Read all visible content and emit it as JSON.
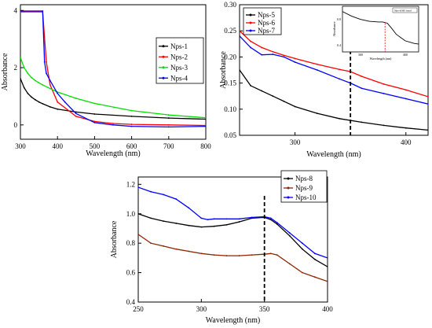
{
  "chart_data": [
    {
      "type": "line",
      "xlabel": "Wavelength (nm)",
      "ylabel": "Absorbance",
      "xlim": [
        300,
        800
      ],
      "ylim": [
        -0.5,
        4.2
      ],
      "xticks": [
        300,
        400,
        500,
        600,
        700,
        800
      ],
      "yticks": [
        0,
        2,
        4
      ],
      "legend_position": "top-right",
      "series": [
        {
          "name": "Nps-1",
          "color": "#000000",
          "x": [
            300,
            310,
            320,
            330,
            340,
            350,
            360,
            380,
            400,
            450,
            500,
            600,
            700,
            800
          ],
          "y": [
            1.62,
            1.3,
            1.1,
            0.97,
            0.88,
            0.8,
            0.74,
            0.63,
            0.55,
            0.45,
            0.38,
            0.3,
            0.24,
            0.2
          ]
        },
        {
          "name": "Nps-2",
          "color": "#ff0000",
          "x": [
            300,
            360,
            370,
            380,
            400,
            450,
            500,
            550,
            600,
            700,
            800
          ],
          "y": [
            3.95,
            3.95,
            2.2,
            1.4,
            0.8,
            0.3,
            0.12,
            0.05,
            0.02,
            0.0,
            -0.02
          ]
        },
        {
          "name": "Nps-3",
          "color": "#00dd00",
          "x": [
            300,
            310,
            320,
            330,
            340,
            350,
            360,
            380,
            400,
            450,
            500,
            600,
            700,
            800
          ],
          "y": [
            2.35,
            2.0,
            1.8,
            1.65,
            1.55,
            1.47,
            1.4,
            1.27,
            1.15,
            0.93,
            0.75,
            0.5,
            0.35,
            0.25
          ]
        },
        {
          "name": "Nps-4",
          "color": "#0000ff",
          "x": [
            300,
            360,
            365,
            370,
            380,
            400,
            420,
            450,
            500,
            550,
            600,
            700,
            800
          ],
          "y": [
            3.98,
            3.98,
            2.2,
            1.8,
            1.55,
            1.1,
            0.8,
            0.4,
            0.08,
            0.0,
            -0.05,
            -0.07,
            -0.05
          ]
        }
      ]
    },
    {
      "type": "line",
      "xlabel": "Wavelength (nm)",
      "ylabel": "Absorbance",
      "xlim": [
        250,
        420
      ],
      "ylim": [
        0.05,
        0.3
      ],
      "xticks": [
        300,
        400
      ],
      "yticks": [
        0.05,
        0.1,
        0.15,
        0.2,
        0.25,
        0.3
      ],
      "ytick_labels": [
        "0.05",
        "0.10",
        "0.15",
        "0.20",
        "0.25",
        "0.30"
      ],
      "marker_line_x": 350,
      "legend_position": "top-left",
      "series": [
        {
          "name": "Nps-5",
          "color": "#000000",
          "x": [
            250,
            260,
            270,
            280,
            290,
            300,
            320,
            340,
            360,
            380,
            400,
            420
          ],
          "y": [
            0.175,
            0.145,
            0.135,
            0.125,
            0.115,
            0.105,
            0.092,
            0.082,
            0.075,
            0.069,
            0.064,
            0.06
          ]
        },
        {
          "name": "Nps-6",
          "color": "#ff0000",
          "x": [
            250,
            260,
            270,
            280,
            290,
            300,
            320,
            340,
            350,
            360,
            380,
            400,
            420
          ],
          "y": [
            0.25,
            0.23,
            0.218,
            0.21,
            0.203,
            0.197,
            0.186,
            0.176,
            0.172,
            0.163,
            0.148,
            0.137,
            0.124
          ]
        },
        {
          "name": "Nps-7",
          "color": "#0000ff",
          "x": [
            250,
            260,
            270,
            280,
            290,
            300,
            320,
            340,
            350,
            360,
            380,
            400,
            420
          ],
          "y": [
            0.24,
            0.218,
            0.204,
            0.205,
            0.2,
            0.19,
            0.175,
            0.158,
            0.15,
            0.14,
            0.13,
            0.12,
            0.11
          ]
        }
      ],
      "inset": {
        "xlabel": "Wavelength (nm)",
        "ylabel": "Absorbance",
        "xticks": [
          300,
          400
        ],
        "yticks": [
          0.4,
          0.8
        ],
        "legend": "Nps-6/HS band",
        "xlim": [
          260,
          430
        ],
        "ylim": [
          0.3,
          1.0
        ],
        "series": {
          "color": "#000000",
          "x": [
            260,
            280,
            300,
            320,
            340,
            350,
            360,
            370,
            380,
            400,
            420,
            430
          ],
          "y": [
            0.92,
            0.85,
            0.8,
            0.77,
            0.76,
            0.76,
            0.74,
            0.66,
            0.57,
            0.47,
            0.43,
            0.42
          ]
        },
        "marker_x": 355
      }
    },
    {
      "type": "line",
      "xlabel": "Wavelength (nm)",
      "ylabel": "Absorbance",
      "xlim": [
        250,
        400
      ],
      "ylim": [
        0.4,
        1.25
      ],
      "xticks": [
        250,
        300,
        350,
        400
      ],
      "yticks": [
        0.4,
        0.6,
        0.8,
        1.0,
        1.2
      ],
      "ytick_labels": [
        "0.4",
        "0.6",
        "0.8",
        "1.0",
        "1.2"
      ],
      "marker_line_x": 350,
      "legend_position": "top-right",
      "series": [
        {
          "name": "Nps-8",
          "color": "#000000",
          "x": [
            250,
            260,
            270,
            280,
            290,
            300,
            310,
            320,
            330,
            340,
            350,
            355,
            360,
            370,
            380,
            390,
            400
          ],
          "y": [
            1.0,
            0.97,
            0.95,
            0.935,
            0.92,
            0.91,
            0.915,
            0.925,
            0.945,
            0.97,
            0.975,
            0.96,
            0.93,
            0.85,
            0.76,
            0.69,
            0.64
          ]
        },
        {
          "name": "Nps-9",
          "color": "#8b2500",
          "x": [
            250,
            260,
            270,
            280,
            290,
            300,
            310,
            320,
            330,
            340,
            350,
            355,
            360,
            370,
            380,
            390,
            400
          ],
          "y": [
            0.86,
            0.8,
            0.78,
            0.76,
            0.745,
            0.73,
            0.72,
            0.715,
            0.715,
            0.72,
            0.725,
            0.73,
            0.72,
            0.66,
            0.6,
            0.57,
            0.54
          ]
        },
        {
          "name": "Nps-10",
          "color": "#0000ff",
          "x": [
            250,
            260,
            270,
            280,
            290,
            300,
            305,
            310,
            320,
            330,
            340,
            350,
            355,
            360,
            370,
            380,
            390,
            400
          ],
          "y": [
            1.18,
            1.15,
            1.13,
            1.1,
            1.04,
            0.97,
            0.96,
            0.965,
            0.965,
            0.965,
            0.975,
            0.98,
            0.97,
            0.94,
            0.87,
            0.8,
            0.73,
            0.7
          ]
        }
      ]
    }
  ]
}
